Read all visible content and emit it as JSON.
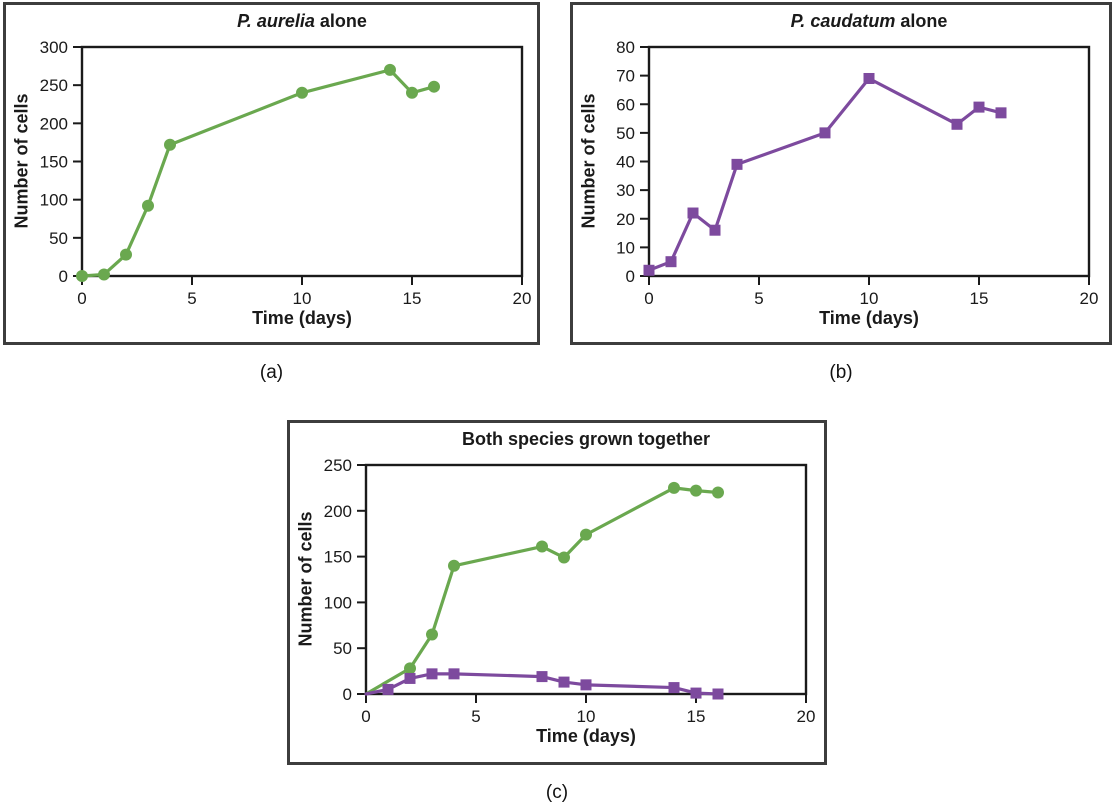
{
  "figure": {
    "background": "#ffffff",
    "panel_border_color": "#3d3d3d",
    "axis_color": "#1a1a1a",
    "aurelia_green": "#6aa84f",
    "caudatum_purple": "#7d4a9e"
  },
  "panels": [
    {
      "caption": "(a)",
      "title_em": "P. aurelia",
      "title_rest": " alone",
      "xlabel": "Time (days)",
      "ylabel": "Number of cells"
    },
    {
      "caption": "(b)",
      "title_em": "P. caudatum",
      "title_rest": " alone",
      "xlabel": "Time (days)",
      "ylabel": "Number of cells"
    },
    {
      "caption": "(c)",
      "title_em": "",
      "title_rest": "Both species grown together",
      "xlabel": "Time (days)",
      "ylabel": "Number of cells"
    }
  ],
  "chart_data": [
    {
      "type": "line",
      "title": "P. aurelia alone",
      "xlabel": "Time (days)",
      "ylabel": "Number of cells",
      "xlim": [
        0,
        20
      ],
      "ylim": [
        0,
        300
      ],
      "xticks": [
        0,
        5,
        10,
        15,
        20
      ],
      "yticks": [
        0,
        50,
        100,
        150,
        200,
        250,
        300
      ],
      "grid": false,
      "legend": "none",
      "series": [
        {
          "name": "P. aurelia",
          "color": "#6aa84f",
          "marker": "circle",
          "x": [
            0,
            1,
            2,
            3,
            4,
            10,
            14,
            15,
            16
          ],
          "y": [
            0,
            2,
            28,
            92,
            172,
            240,
            270,
            240,
            248
          ]
        }
      ]
    },
    {
      "type": "line",
      "title": "P. caudatum alone",
      "xlabel": "Time (days)",
      "ylabel": "Number of cells",
      "xlim": [
        0,
        20
      ],
      "ylim": [
        0,
        80
      ],
      "xticks": [
        0,
        5,
        10,
        15,
        20
      ],
      "yticks": [
        0,
        10,
        20,
        30,
        40,
        50,
        60,
        70,
        80
      ],
      "grid": false,
      "legend": "none",
      "series": [
        {
          "name": "P. caudatum",
          "color": "#7d4a9e",
          "marker": "square",
          "x": [
            0,
            1,
            2,
            3,
            4,
            8,
            10,
            14,
            15,
            16
          ],
          "y": [
            2,
            5,
            22,
            16,
            39,
            50,
            69,
            53,
            59,
            57
          ]
        }
      ]
    },
    {
      "type": "line",
      "title": "Both species grown together",
      "xlabel": "Time (days)",
      "ylabel": "Number of cells",
      "xlim": [
        0,
        20
      ],
      "ylim": [
        0,
        250
      ],
      "xticks": [
        0,
        5,
        10,
        15,
        20
      ],
      "yticks": [
        0,
        50,
        100,
        150,
        200,
        250
      ],
      "grid": false,
      "legend": "none",
      "series": [
        {
          "name": "P. aurelia",
          "color": "#6aa84f",
          "marker": "circle",
          "no_marker_indices": [
            0
          ],
          "x": [
            0,
            2,
            3,
            4,
            8,
            9,
            10,
            14,
            15,
            16
          ],
          "y": [
            0,
            28,
            65,
            140,
            161,
            149,
            174,
            225,
            222,
            220
          ]
        },
        {
          "name": "P. caudatum",
          "color": "#7d4a9e",
          "marker": "square",
          "no_marker_indices": [
            0
          ],
          "x": [
            0,
            1,
            2,
            3,
            4,
            8,
            9,
            10,
            14,
            15,
            16
          ],
          "y": [
            0,
            5,
            17,
            22,
            22,
            19,
            13,
            10,
            7,
            1,
            0
          ]
        }
      ]
    }
  ]
}
